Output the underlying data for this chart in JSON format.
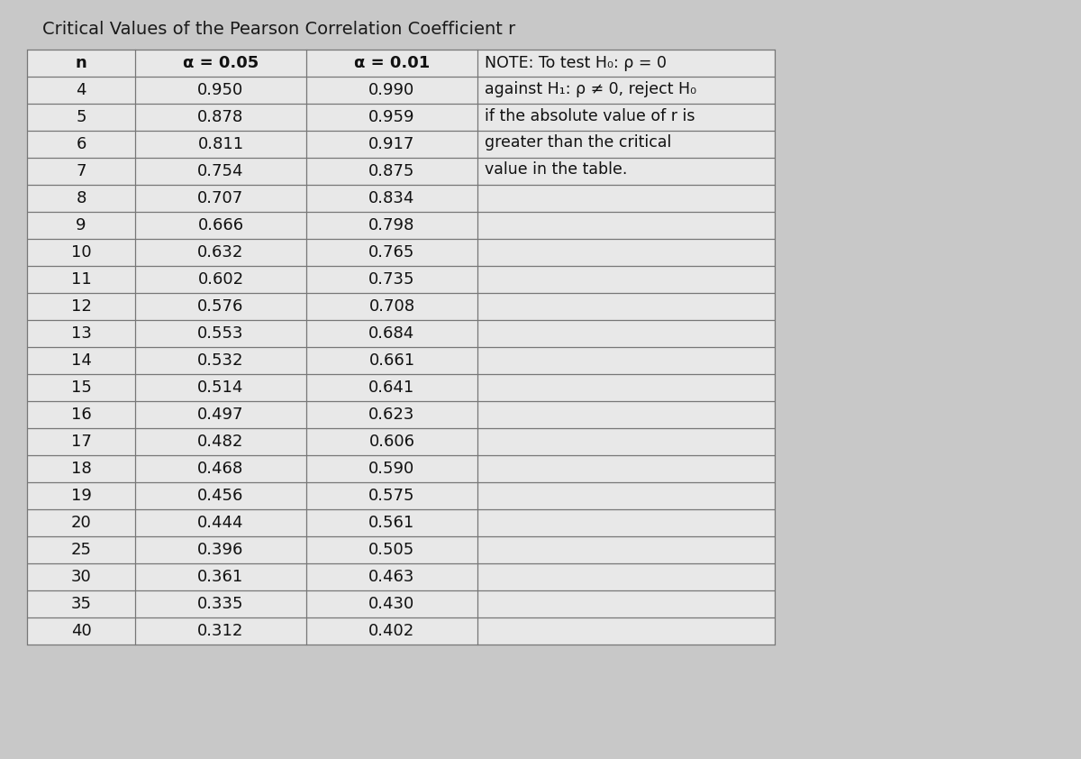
{
  "title": "Critical Values of the Pearson Correlation Coefficient r",
  "col_headers": [
    "n",
    "α = 0.05",
    "α = 0.01",
    ""
  ],
  "rows": [
    [
      4,
      "0.950",
      "0.990"
    ],
    [
      5,
      "0.878",
      "0.959"
    ],
    [
      6,
      "0.811",
      "0.917"
    ],
    [
      7,
      "0.754",
      "0.875"
    ],
    [
      8,
      "0.707",
      "0.834"
    ],
    [
      9,
      "0.666",
      "0.798"
    ],
    [
      10,
      "0.632",
      "0.765"
    ],
    [
      11,
      "0.602",
      "0.735"
    ],
    [
      12,
      "0.576",
      "0.708"
    ],
    [
      13,
      "0.553",
      "0.684"
    ],
    [
      14,
      "0.532",
      "0.661"
    ],
    [
      15,
      "0.514",
      "0.641"
    ],
    [
      16,
      "0.497",
      "0.623"
    ],
    [
      17,
      "0.482",
      "0.606"
    ],
    [
      18,
      "0.468",
      "0.590"
    ],
    [
      19,
      "0.456",
      "0.575"
    ],
    [
      20,
      "0.444",
      "0.561"
    ],
    [
      25,
      "0.396",
      "0.505"
    ],
    [
      30,
      "0.361",
      "0.463"
    ],
    [
      35,
      "0.335",
      "0.430"
    ],
    [
      40,
      "0.312",
      "0.402"
    ]
  ],
  "note_lines": [
    "NOTE: To test H₀: ρ = 0",
    "against H₁: ρ ≠ 0, reject H₀",
    "if the absolute value of r is",
    "greater than the critical",
    "value in the table."
  ],
  "bg_color": "#c8c8c8",
  "table_fill": "#e8e8e8",
  "border_color": "#777777",
  "title_fontsize": 14,
  "header_fontsize": 13,
  "cell_fontsize": 13,
  "note_fontsize": 12.5
}
